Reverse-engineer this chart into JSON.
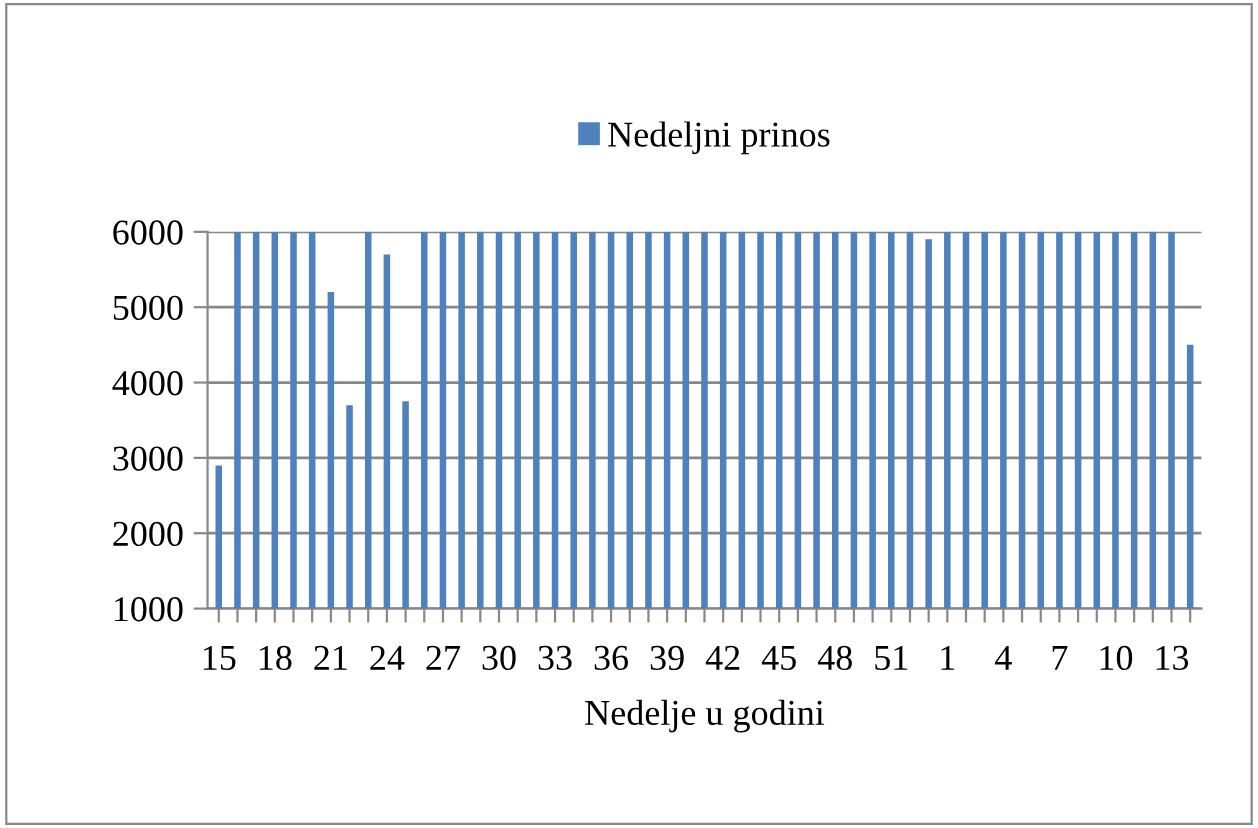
{
  "chart_data": {
    "type": "bar",
    "xlabel": "Nedelje u godini",
    "categories": [
      "15",
      null,
      null,
      "18",
      null,
      null,
      "21",
      null,
      null,
      "24",
      null,
      null,
      "27",
      null,
      null,
      "30",
      null,
      null,
      "33",
      null,
      null,
      "36",
      null,
      null,
      "39",
      null,
      null,
      "42",
      null,
      null,
      "45",
      null,
      null,
      "48",
      null,
      null,
      "51",
      null,
      null,
      "1",
      null,
      null,
      "4",
      null,
      null,
      "7",
      null,
      null,
      "10",
      null,
      null,
      "13",
      null
    ],
    "series": [
      {
        "name": "Nedeljni prinos",
        "color": "#4f81bd",
        "values": [
          2900,
          6000,
          6000,
          6000,
          6000,
          6000,
          5200,
          3700,
          6000,
          5700,
          3750,
          6000,
          6000,
          6000,
          6000,
          6000,
          6000,
          6000,
          6000,
          6000,
          6000,
          6000,
          6000,
          6000,
          6000,
          6000,
          6000,
          6000,
          6000,
          6000,
          6000,
          6000,
          6000,
          6000,
          6000,
          6000,
          6000,
          6000,
          5900,
          6000,
          6000,
          6000,
          6000,
          6000,
          6000,
          6000,
          6000,
          6000,
          6000,
          6000,
          6000,
          6000,
          4500
        ]
      }
    ],
    "ylim": [
      1000,
      6000
    ],
    "yticks": [
      1000,
      2000,
      3000,
      4000,
      5000,
      6000
    ],
    "grid": "y",
    "legend": "top"
  }
}
